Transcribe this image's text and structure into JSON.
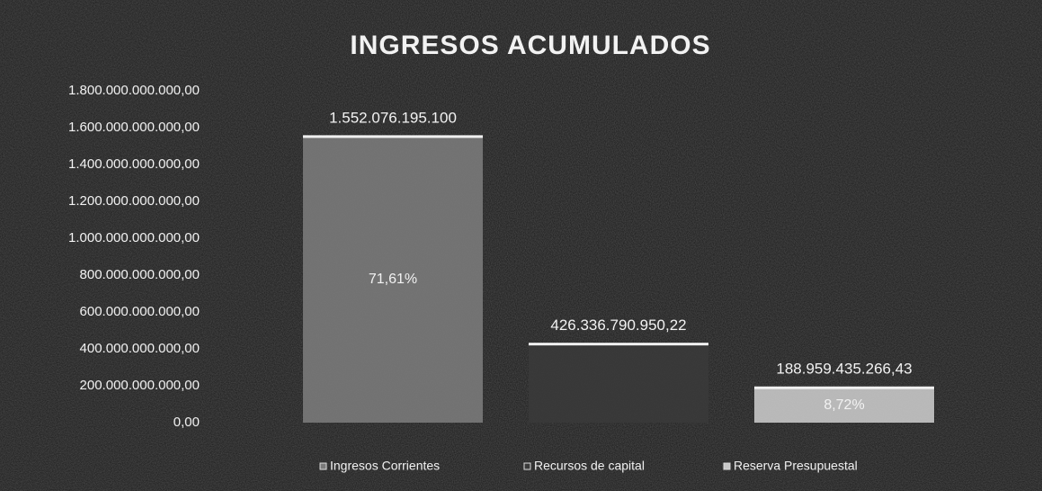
{
  "chart_data": {
    "type": "bar",
    "title": "INGRESOS ACUMULADOS",
    "categories": [
      null
    ],
    "series": [
      {
        "name": "Ingresos Corrientes",
        "color": "#7a7a7a",
        "values": [
          1552076195100
        ],
        "value_labels": [
          "1.552.076.195.100"
        ],
        "share": 71.61,
        "share_label": "71,61%"
      },
      {
        "name": "Recursos de capital",
        "color": "#3a3a3a",
        "values": [
          426336790950.22
        ],
        "value_labels": [
          "426.336.790.950,22"
        ]
      },
      {
        "name": "Reserva Presupuestal",
        "color": "#c8c8c8",
        "values": [
          188959435266.43
        ],
        "value_labels": [
          "188.959.435.266,43"
        ],
        "share": 8.72,
        "share_label": "8,72%"
      }
    ],
    "ylim": [
      0,
      1800000000000
    ],
    "yticks": [
      {
        "value": 0,
        "label": "0,00"
      },
      {
        "value": 200000000000,
        "label": "200.000.000.000,00"
      },
      {
        "value": 400000000000,
        "label": "400.000.000.000,00"
      },
      {
        "value": 600000000000,
        "label": "600.000.000.000,00"
      },
      {
        "value": 800000000000,
        "label": "800.000.000.000,00"
      },
      {
        "value": 1000000000000,
        "label": "1.000.000.000.000,00"
      },
      {
        "value": 1200000000000,
        "label": "1.200.000.000.000,00"
      },
      {
        "value": 1400000000000,
        "label": "1.400.000.000.000,00"
      },
      {
        "value": 1600000000000,
        "label": "1.600.000.000.000,00"
      },
      {
        "value": 1800000000000,
        "label": "1.800.000.000.000,00"
      }
    ],
    "grid": false,
    "legend": "bottom"
  }
}
